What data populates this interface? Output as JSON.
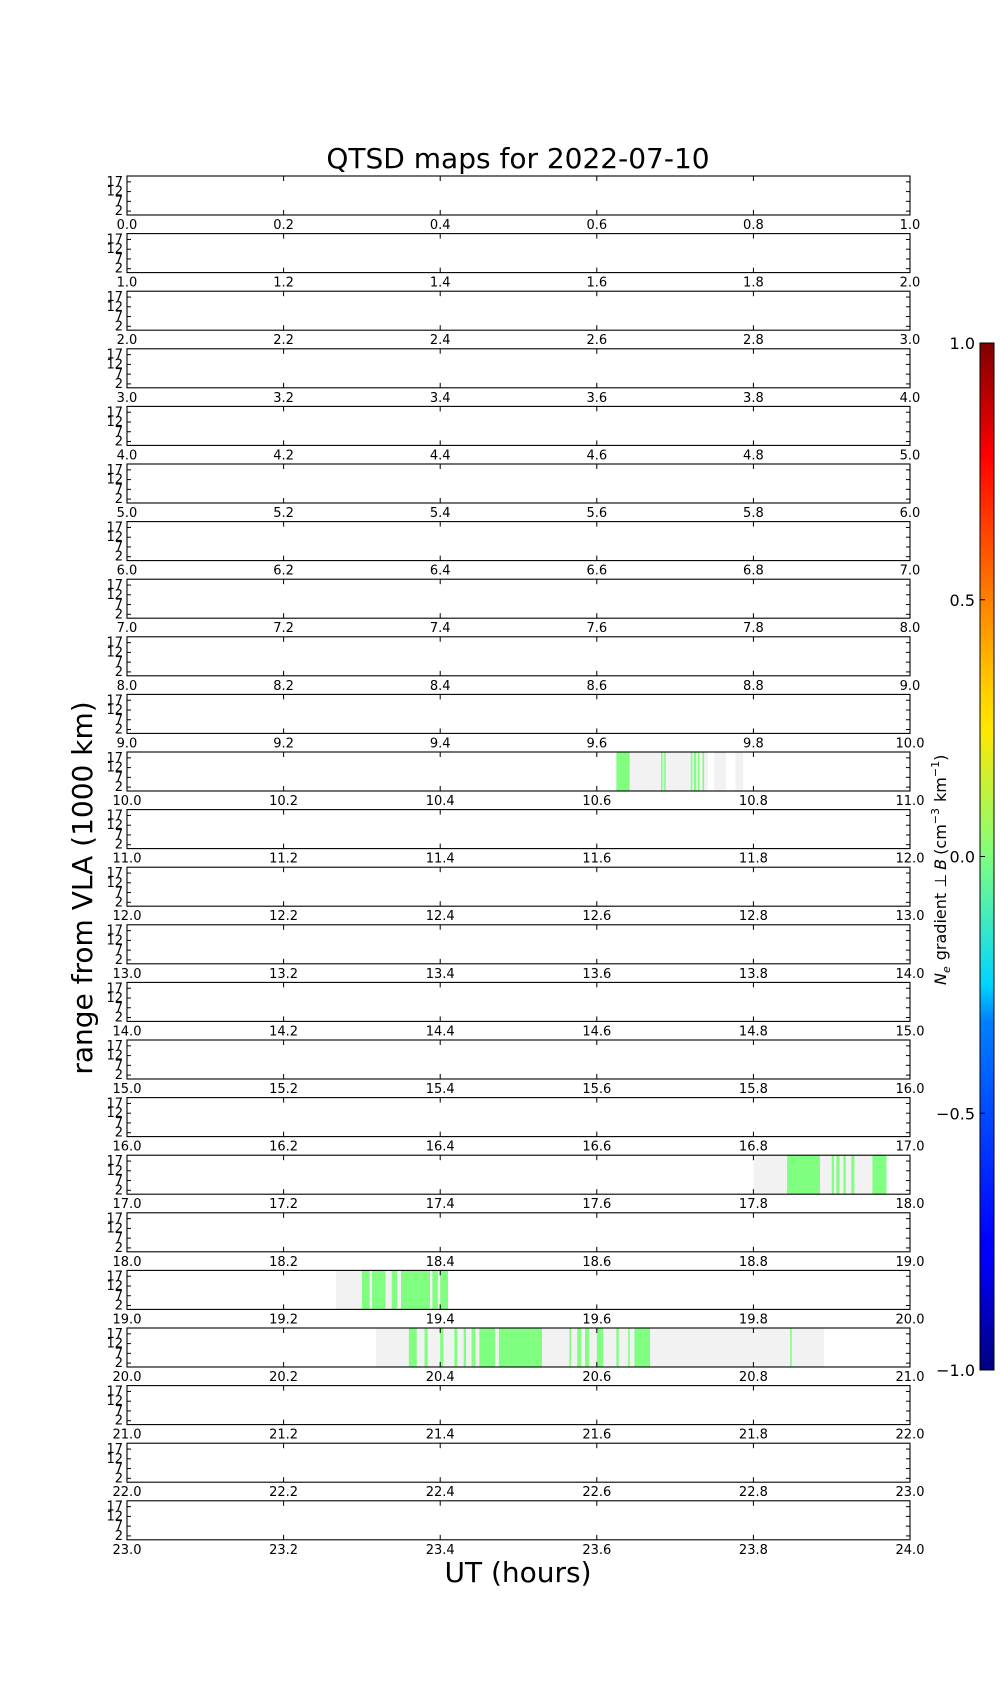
{
  "chart_data": {
    "type": "heatmap",
    "title": "QTSD maps for 2022-07-10",
    "xlabel": "UT (hours)",
    "ylabel": "range from VLA (1000 km)",
    "ytick_labels": [
      "17",
      "12",
      "7",
      "2"
    ],
    "yticks": [
      17,
      12,
      7,
      2
    ],
    "ylim": [
      0,
      20
    ],
    "colorbar": {
      "label": "N_e gradient ⊥ B (cm⁻³ km⁻¹)",
      "label_parts": {
        "ne": "N",
        "e_sub": "e",
        "gradient": "gradient ⊥",
        "vec_b": "B",
        "units": "(cm",
        "exp1": "−3",
        "km": "km",
        "exp2": "−1",
        "close": ")"
      },
      "ticks": [
        1.0,
        0.5,
        0.0,
        -0.5,
        -1.0
      ],
      "tick_labels": [
        "1.0",
        "0.5",
        "0.0",
        "−0.5",
        "−1.0"
      ],
      "range": [
        -1.0,
        1.0
      ],
      "colormap": "jet"
    },
    "colors": {
      "coverage": "#f2f2f2",
      "value_zero": "#80ff80"
    },
    "panels": [
      {
        "xlim": [
          0,
          1
        ],
        "xtick_labels": [
          "0.0",
          "0.2",
          "0.4",
          "0.6",
          "0.8",
          "1.0"
        ],
        "coverage": [],
        "data_segments": []
      },
      {
        "xlim": [
          1,
          2
        ],
        "xtick_labels": [
          "1.0",
          "1.2",
          "1.4",
          "1.6",
          "1.8",
          "2.0"
        ],
        "coverage": [],
        "data_segments": []
      },
      {
        "xlim": [
          2,
          3
        ],
        "xtick_labels": [
          "2.0",
          "2.2",
          "2.4",
          "2.6",
          "2.8",
          "3.0"
        ],
        "coverage": [],
        "data_segments": []
      },
      {
        "xlim": [
          3,
          4
        ],
        "xtick_labels": [
          "3.0",
          "3.2",
          "3.4",
          "3.6",
          "3.8",
          "4.0"
        ],
        "coverage": [],
        "data_segments": []
      },
      {
        "xlim": [
          4,
          5
        ],
        "xtick_labels": [
          "4.0",
          "4.2",
          "4.4",
          "4.6",
          "4.8",
          "5.0"
        ],
        "coverage": [],
        "data_segments": []
      },
      {
        "xlim": [
          5,
          6
        ],
        "xtick_labels": [
          "5.0",
          "5.2",
          "5.4",
          "5.6",
          "5.8",
          "6.0"
        ],
        "coverage": [],
        "data_segments": []
      },
      {
        "xlim": [
          6,
          7
        ],
        "xtick_labels": [
          "6.0",
          "6.2",
          "6.4",
          "6.6",
          "6.8",
          "7.0"
        ],
        "coverage": [],
        "data_segments": []
      },
      {
        "xlim": [
          7,
          8
        ],
        "xtick_labels": [
          "7.0",
          "7.2",
          "7.4",
          "7.6",
          "7.8",
          "8.0"
        ],
        "coverage": [],
        "data_segments": []
      },
      {
        "xlim": [
          8,
          9
        ],
        "xtick_labels": [
          "8.0",
          "8.2",
          "8.4",
          "8.6",
          "8.8",
          "9.0"
        ],
        "coverage": [],
        "data_segments": []
      },
      {
        "xlim": [
          9,
          10
        ],
        "xtick_labels": [
          "9.0",
          "9.2",
          "9.4",
          "9.6",
          "9.8",
          "10.0"
        ],
        "coverage": [],
        "data_segments": []
      },
      {
        "xlim": [
          10,
          11
        ],
        "xtick_labels": [
          "10.0",
          "10.2",
          "10.4",
          "10.6",
          "10.8",
          "11.0"
        ],
        "coverage": [
          [
            10.625,
            10.742
          ],
          [
            10.75,
            10.765
          ],
          [
            10.777,
            10.787
          ]
        ],
        "data_segments": [
          [
            10.625,
            10.642
          ],
          [
            10.682,
            10.684
          ],
          [
            10.686,
            10.688
          ],
          [
            10.72,
            10.722
          ],
          [
            10.724,
            10.727
          ],
          [
            10.729,
            10.731
          ],
          [
            10.735,
            10.737
          ]
        ]
      },
      {
        "xlim": [
          11,
          12
        ],
        "xtick_labels": [
          "11.0",
          "11.2",
          "11.4",
          "11.6",
          "11.8",
          "12.0"
        ],
        "coverage": [],
        "data_segments": []
      },
      {
        "xlim": [
          12,
          13
        ],
        "xtick_labels": [
          "12.0",
          "12.2",
          "12.4",
          "12.6",
          "12.8",
          "13.0"
        ],
        "coverage": [],
        "data_segments": []
      },
      {
        "xlim": [
          13,
          14
        ],
        "xtick_labels": [
          "13.0",
          "13.2",
          "13.4",
          "13.6",
          "13.8",
          "14.0"
        ],
        "coverage": [],
        "data_segments": []
      },
      {
        "xlim": [
          14,
          15
        ],
        "xtick_labels": [
          "14.0",
          "14.2",
          "14.4",
          "14.6",
          "14.8",
          "15.0"
        ],
        "coverage": [],
        "data_segments": []
      },
      {
        "xlim": [
          15,
          16
        ],
        "xtick_labels": [
          "15.0",
          "15.2",
          "15.4",
          "15.6",
          "15.8",
          "16.0"
        ],
        "coverage": [],
        "data_segments": []
      },
      {
        "xlim": [
          16,
          17
        ],
        "xtick_labels": [
          "16.0",
          "16.2",
          "16.4",
          "16.6",
          "16.8",
          "17.0"
        ],
        "coverage": [],
        "data_segments": []
      },
      {
        "xlim": [
          17,
          18
        ],
        "xtick_labels": [
          "17.0",
          "17.2",
          "17.4",
          "17.6",
          "17.8",
          "18.0"
        ],
        "coverage": [
          [
            17.8,
            17.97
          ]
        ],
        "data_segments": [
          [
            17.843,
            17.885
          ],
          [
            17.9,
            17.903
          ],
          [
            17.906,
            17.91
          ],
          [
            17.915,
            17.918
          ],
          [
            17.925,
            17.929
          ],
          [
            17.952,
            17.97
          ]
        ]
      },
      {
        "xlim": [
          18,
          19
        ],
        "xtick_labels": [
          "18.0",
          "18.2",
          "18.4",
          "18.6",
          "18.8",
          "19.0"
        ],
        "coverage": [],
        "data_segments": []
      },
      {
        "xlim": [
          19,
          20
        ],
        "xtick_labels": [
          "19.0",
          "19.2",
          "19.4",
          "19.6",
          "19.8",
          "20.0"
        ],
        "coverage": [
          [
            19.267,
            19.41
          ]
        ],
        "data_segments": [
          [
            19.3,
            19.31
          ],
          [
            19.313,
            19.33
          ],
          [
            19.338,
            19.345
          ],
          [
            19.35,
            19.387
          ],
          [
            19.39,
            19.397
          ],
          [
            19.4,
            19.41
          ]
        ]
      },
      {
        "xlim": [
          20,
          21
        ],
        "xtick_labels": [
          "20.0",
          "20.2",
          "20.4",
          "20.6",
          "20.8",
          "21.0"
        ],
        "coverage": [
          [
            20.318,
            20.89
          ]
        ],
        "data_segments": [
          [
            20.36,
            20.37
          ],
          [
            20.38,
            20.384
          ],
          [
            20.4,
            20.404
          ],
          [
            20.418,
            20.422
          ],
          [
            20.43,
            20.433
          ],
          [
            20.44,
            20.445
          ],
          [
            20.45,
            20.47
          ],
          [
            20.475,
            20.53
          ],
          [
            20.565,
            20.567
          ],
          [
            20.575,
            20.58
          ],
          [
            20.585,
            20.59
          ],
          [
            20.6,
            20.608
          ],
          [
            20.625,
            20.628
          ],
          [
            20.64,
            20.642
          ],
          [
            20.648,
            20.668
          ],
          [
            20.847,
            20.849
          ]
        ]
      },
      {
        "xlim": [
          21,
          22
        ],
        "xtick_labels": [
          "21.0",
          "21.2",
          "21.4",
          "21.6",
          "21.8",
          "22.0"
        ],
        "coverage": [],
        "data_segments": []
      },
      {
        "xlim": [
          22,
          23
        ],
        "xtick_labels": [
          "22.0",
          "22.2",
          "22.4",
          "22.6",
          "22.8",
          "23.0"
        ],
        "coverage": [],
        "data_segments": []
      },
      {
        "xlim": [
          23,
          24
        ],
        "xtick_labels": [
          "23.0",
          "23.2",
          "23.4",
          "23.6",
          "23.8",
          "24.0"
        ],
        "coverage": [],
        "data_segments": []
      }
    ]
  }
}
